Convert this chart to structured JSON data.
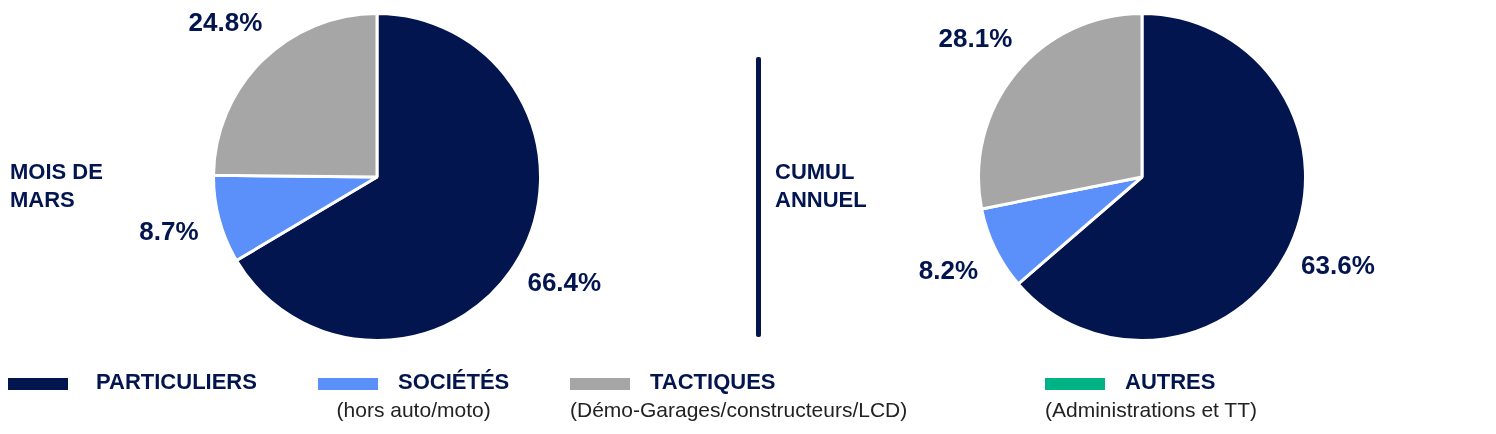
{
  "chart_data": [
    {
      "type": "pie",
      "title": "MOIS DE\nMARS",
      "categories": [
        "PARTICULIERS",
        "SOCIÉTÉS\n(hors auto/moto)",
        "TACTIQUES\n(Démo-Garages/constructeurs/LCD)",
        "AUTRES\n(Administrations et TT)"
      ],
      "values": [
        66.4,
        8.7,
        24.8,
        0
      ],
      "colors": [
        "#03154f",
        "#5b8ff9",
        "#a6a6a6",
        "#00b386"
      ],
      "value_labels": [
        "66.4%",
        "8.7%",
        "24.8%",
        null
      ],
      "legend": "bottom"
    },
    {
      "type": "pie",
      "title": "CUMUL\nANNUEL",
      "categories": [
        null,
        null,
        null,
        null
      ],
      "values": [
        63.6,
        8.2,
        28.1,
        0
      ],
      "colors": [
        "#03154f",
        "#5b8ff9",
        "#a6a6a6",
        "#00b386"
      ],
      "value_labels": [
        "63.6%",
        "8.2%",
        "28.1%",
        null
      ]
    }
  ]
}
